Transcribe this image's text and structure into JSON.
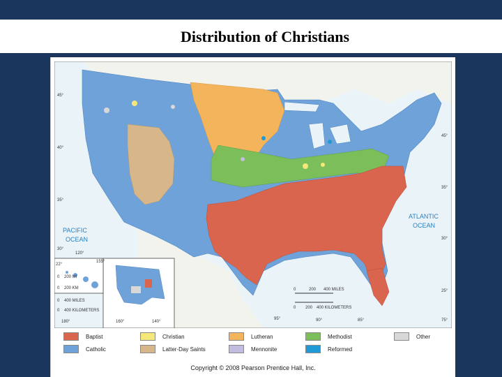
{
  "slide": {
    "title": "Distribution of Christians"
  },
  "map": {
    "labels": {
      "pacific": [
        "PACIFIC",
        "OCEAN"
      ],
      "atlantic": [
        "ATLANTIC",
        "OCEAN"
      ]
    },
    "coords": {
      "lat45": "45°",
      "lat40": "40°",
      "lat35": "35°",
      "lat30": "30°",
      "lat25": "25°",
      "lat22": "22°",
      "lat45r": "45°",
      "lat35r": "35°",
      "lat30r": "30°",
      "lon75": "75°",
      "lon95": "95°",
      "lon90": "90°",
      "lon85": "85°",
      "lon120": "120°",
      "lon155": "155°",
      "lon180": "180°",
      "lon160": "160°",
      "lon140": "140°"
    },
    "scale_main": {
      "miles_ticks": [
        "0",
        "200",
        "400 MILES"
      ],
      "km_ticks": [
        "0",
        "200",
        "400 KILOMETERS"
      ]
    },
    "scale_hawaii": {
      "miles_ticks": [
        "0",
        "200 MI"
      ],
      "km_ticks": [
        "0",
        "200 KM"
      ]
    },
    "scale_alaska": {
      "miles_ticks": [
        "0",
        "400 MILES"
      ],
      "km_ticks": [
        "0",
        "400 KILOMETERS"
      ]
    }
  },
  "legend": {
    "items": [
      {
        "label": "Baptist",
        "color": "#d9654f"
      },
      {
        "label": "Catholic",
        "color": "#6fa2d9"
      },
      {
        "label": "Christian",
        "color": "#f5e87a"
      },
      {
        "label": "Latter-Day Saints",
        "color": "#d7b68a"
      },
      {
        "label": "Lutheran",
        "color": "#f3b45c"
      },
      {
        "label": "Mennonite",
        "color": "#c2bde0"
      },
      {
        "label": "Methodist",
        "color": "#7cbf5a"
      },
      {
        "label": "Reformed",
        "color": "#1f9ad6"
      },
      {
        "label": "Other",
        "color": "#d8d8d8"
      }
    ]
  },
  "footer": {
    "copyright": "Copyright © 2008 Pearson Prentice Hall, Inc."
  }
}
